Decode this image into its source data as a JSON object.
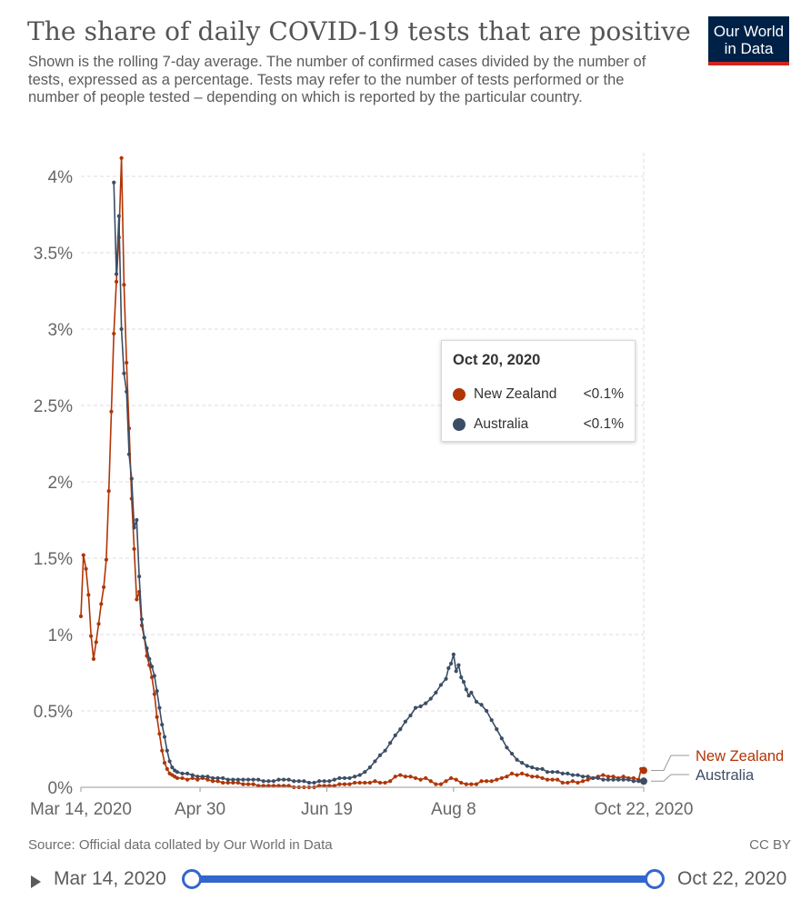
{
  "header": {
    "title": "The share of daily COVID-19 tests that are positive",
    "subtitle": "Shown is the rolling 7-day average. The number of confirmed cases divided by the number of tests, expressed as a percentage. Tests may refer to the number of tests performed or the number of people tested – depending on which is reported by the particular country.",
    "logo_line1": "Our World",
    "logo_line2": "in Data"
  },
  "colors": {
    "new_zealand": "#b13507",
    "australia": "#3c4e66",
    "slider": "#3366cc",
    "logo_bg": "#002147",
    "logo_accent": "#ce261e"
  },
  "tooltip": {
    "date": "Oct 20, 2020",
    "rows": [
      {
        "name": "New Zealand",
        "value": "<0.1%",
        "color": "#b13507"
      },
      {
        "name": "Australia",
        "value": "<0.1%",
        "color": "#3c4e66"
      }
    ]
  },
  "footer": {
    "source": "Source: Official data collated by Our World in Data",
    "license": "CC BY"
  },
  "timeline": {
    "start_label": "Mar 14, 2020",
    "end_label": "Oct 22, 2020"
  },
  "chart_data": {
    "type": "line",
    "title": "The share of daily COVID-19 tests that are positive",
    "xlabel": "",
    "ylabel": "",
    "x_unit": "days since Mar 14, 2020",
    "xlim": [
      0,
      222
    ],
    "ylim": [
      0,
      4.0
    ],
    "y_ticks": [
      0,
      0.5,
      1,
      1.5,
      2,
      2.5,
      3,
      3.5,
      4
    ],
    "y_tick_labels": [
      "0%",
      "0.5%",
      "1%",
      "1.5%",
      "2%",
      "2.5%",
      "3%",
      "3.5%",
      "4%"
    ],
    "x_ticks": [
      0,
      47,
      97,
      147,
      222
    ],
    "x_tick_labels": [
      "Mar 14, 2020",
      "Apr 30",
      "Jun 19",
      "Aug 8",
      "Oct 22, 2020"
    ],
    "grid": true,
    "legend": "end-labels-right",
    "series": [
      {
        "name": "New Zealand",
        "color": "#b13507",
        "points": [
          [
            0,
            1.12
          ],
          [
            1,
            1.52
          ],
          [
            2,
            1.43
          ],
          [
            3,
            1.26
          ],
          [
            4,
            0.99
          ],
          [
            5,
            0.84
          ],
          [
            6,
            0.95
          ],
          [
            7,
            1.07
          ],
          [
            8,
            1.2
          ],
          [
            9,
            1.31
          ],
          [
            10,
            1.49
          ],
          [
            11,
            1.94
          ],
          [
            12,
            2.46
          ],
          [
            13,
            2.97
          ],
          [
            14,
            3.31
          ],
          [
            15,
            3.6
          ],
          [
            16,
            4.12
          ],
          [
            17,
            3.29
          ],
          [
            18,
            2.78
          ],
          [
            19,
            2.35
          ],
          [
            20,
            1.89
          ],
          [
            21,
            1.56
          ],
          [
            22,
            1.23
          ],
          [
            23,
            1.28
          ],
          [
            24,
            1.06
          ],
          [
            25,
            0.98
          ],
          [
            26,
            0.86
          ],
          [
            27,
            0.8
          ],
          [
            28,
            0.72
          ],
          [
            29,
            0.61
          ],
          [
            30,
            0.46
          ],
          [
            31,
            0.35
          ],
          [
            32,
            0.24
          ],
          [
            33,
            0.16
          ],
          [
            34,
            0.12
          ],
          [
            35,
            0.09
          ],
          [
            36,
            0.08
          ],
          [
            37,
            0.07
          ],
          [
            38,
            0.06
          ],
          [
            40,
            0.06
          ],
          [
            42,
            0.05
          ],
          [
            44,
            0.06
          ],
          [
            46,
            0.05
          ],
          [
            48,
            0.06
          ],
          [
            50,
            0.05
          ],
          [
            52,
            0.04
          ],
          [
            54,
            0.04
          ],
          [
            56,
            0.03
          ],
          [
            58,
            0.03
          ],
          [
            60,
            0.03
          ],
          [
            62,
            0.03
          ],
          [
            64,
            0.02
          ],
          [
            66,
            0.02
          ],
          [
            68,
            0.02
          ],
          [
            70,
            0.01
          ],
          [
            72,
            0.01
          ],
          [
            74,
            0.01
          ],
          [
            76,
            0.01
          ],
          [
            78,
            0.01
          ],
          [
            80,
            0.01
          ],
          [
            82,
            0.01
          ],
          [
            84,
            0.0
          ],
          [
            86,
            0.0
          ],
          [
            88,
            0.0
          ],
          [
            90,
            0.0
          ],
          [
            92,
            0.0
          ],
          [
            94,
            0.01
          ],
          [
            96,
            0.01
          ],
          [
            98,
            0.01
          ],
          [
            100,
            0.01
          ],
          [
            102,
            0.02
          ],
          [
            104,
            0.02
          ],
          [
            106,
            0.02
          ],
          [
            108,
            0.03
          ],
          [
            110,
            0.03
          ],
          [
            112,
            0.03
          ],
          [
            114,
            0.03
          ],
          [
            116,
            0.04
          ],
          [
            118,
            0.03
          ],
          [
            120,
            0.03
          ],
          [
            122,
            0.04
          ],
          [
            124,
            0.07
          ],
          [
            126,
            0.08
          ],
          [
            128,
            0.07
          ],
          [
            130,
            0.07
          ],
          [
            132,
            0.06
          ],
          [
            134,
            0.05
          ],
          [
            136,
            0.06
          ],
          [
            138,
            0.04
          ],
          [
            140,
            0.02
          ],
          [
            142,
            0.02
          ],
          [
            144,
            0.04
          ],
          [
            146,
            0.06
          ],
          [
            148,
            0.05
          ],
          [
            150,
            0.03
          ],
          [
            152,
            0.02
          ],
          [
            154,
            0.02
          ],
          [
            156,
            0.02
          ],
          [
            158,
            0.04
          ],
          [
            160,
            0.04
          ],
          [
            162,
            0.04
          ],
          [
            164,
            0.05
          ],
          [
            166,
            0.06
          ],
          [
            168,
            0.07
          ],
          [
            170,
            0.09
          ],
          [
            172,
            0.08
          ],
          [
            174,
            0.09
          ],
          [
            176,
            0.08
          ],
          [
            178,
            0.07
          ],
          [
            180,
            0.07
          ],
          [
            182,
            0.06
          ],
          [
            184,
            0.05
          ],
          [
            186,
            0.05
          ],
          [
            188,
            0.05
          ],
          [
            190,
            0.03
          ],
          [
            192,
            0.03
          ],
          [
            194,
            0.04
          ],
          [
            196,
            0.03
          ],
          [
            198,
            0.04
          ],
          [
            200,
            0.05
          ],
          [
            202,
            0.06
          ],
          [
            204,
            0.07
          ],
          [
            206,
            0.08
          ],
          [
            208,
            0.07
          ],
          [
            210,
            0.07
          ],
          [
            212,
            0.06
          ],
          [
            214,
            0.07
          ],
          [
            216,
            0.06
          ],
          [
            218,
            0.06
          ],
          [
            220,
            0.05
          ],
          [
            221,
            0.12
          ],
          [
            222,
            0.11
          ]
        ]
      },
      {
        "name": "Australia",
        "color": "#3c4e66",
        "points": [
          [
            13,
            3.96
          ],
          [
            14,
            3.36
          ],
          [
            15,
            3.74
          ],
          [
            16,
            3.0
          ],
          [
            17,
            2.71
          ],
          [
            18,
            2.59
          ],
          [
            19,
            2.18
          ],
          [
            20,
            2.02
          ],
          [
            21,
            1.7
          ],
          [
            22,
            1.75
          ],
          [
            23,
            1.38
          ],
          [
            24,
            1.1
          ],
          [
            25,
            0.98
          ],
          [
            26,
            0.91
          ],
          [
            27,
            0.84
          ],
          [
            28,
            0.79
          ],
          [
            29,
            0.73
          ],
          [
            30,
            0.63
          ],
          [
            31,
            0.52
          ],
          [
            32,
            0.41
          ],
          [
            33,
            0.33
          ],
          [
            34,
            0.24
          ],
          [
            35,
            0.17
          ],
          [
            36,
            0.13
          ],
          [
            37,
            0.11
          ],
          [
            38,
            0.1
          ],
          [
            40,
            0.09
          ],
          [
            42,
            0.09
          ],
          [
            44,
            0.08
          ],
          [
            46,
            0.07
          ],
          [
            48,
            0.07
          ],
          [
            50,
            0.07
          ],
          [
            52,
            0.06
          ],
          [
            54,
            0.06
          ],
          [
            56,
            0.06
          ],
          [
            58,
            0.05
          ],
          [
            60,
            0.05
          ],
          [
            62,
            0.05
          ],
          [
            64,
            0.05
          ],
          [
            66,
            0.05
          ],
          [
            68,
            0.05
          ],
          [
            70,
            0.05
          ],
          [
            72,
            0.04
          ],
          [
            74,
            0.04
          ],
          [
            76,
            0.04
          ],
          [
            78,
            0.05
          ],
          [
            80,
            0.05
          ],
          [
            82,
            0.05
          ],
          [
            84,
            0.04
          ],
          [
            86,
            0.04
          ],
          [
            88,
            0.04
          ],
          [
            90,
            0.03
          ],
          [
            92,
            0.03
          ],
          [
            94,
            0.04
          ],
          [
            96,
            0.04
          ],
          [
            98,
            0.04
          ],
          [
            100,
            0.05
          ],
          [
            102,
            0.06
          ],
          [
            104,
            0.06
          ],
          [
            106,
            0.06
          ],
          [
            108,
            0.07
          ],
          [
            110,
            0.08
          ],
          [
            112,
            0.1
          ],
          [
            114,
            0.13
          ],
          [
            116,
            0.17
          ],
          [
            118,
            0.21
          ],
          [
            120,
            0.24
          ],
          [
            122,
            0.29
          ],
          [
            124,
            0.34
          ],
          [
            126,
            0.38
          ],
          [
            128,
            0.43
          ],
          [
            130,
            0.47
          ],
          [
            132,
            0.52
          ],
          [
            134,
            0.53
          ],
          [
            136,
            0.55
          ],
          [
            138,
            0.58
          ],
          [
            140,
            0.62
          ],
          [
            142,
            0.67
          ],
          [
            144,
            0.71
          ],
          [
            145,
            0.78
          ],
          [
            146,
            0.81
          ],
          [
            147,
            0.87
          ],
          [
            148,
            0.76
          ],
          [
            149,
            0.8
          ],
          [
            150,
            0.72
          ],
          [
            151,
            0.69
          ],
          [
            152,
            0.64
          ],
          [
            153,
            0.6
          ],
          [
            154,
            0.62
          ],
          [
            156,
            0.56
          ],
          [
            158,
            0.54
          ],
          [
            160,
            0.5
          ],
          [
            162,
            0.44
          ],
          [
            164,
            0.38
          ],
          [
            166,
            0.32
          ],
          [
            168,
            0.26
          ],
          [
            170,
            0.22
          ],
          [
            172,
            0.18
          ],
          [
            174,
            0.16
          ],
          [
            176,
            0.14
          ],
          [
            178,
            0.13
          ],
          [
            180,
            0.12
          ],
          [
            182,
            0.12
          ],
          [
            184,
            0.1
          ],
          [
            186,
            0.1
          ],
          [
            188,
            0.1
          ],
          [
            190,
            0.09
          ],
          [
            192,
            0.09
          ],
          [
            194,
            0.08
          ],
          [
            196,
            0.08
          ],
          [
            198,
            0.07
          ],
          [
            200,
            0.07
          ],
          [
            202,
            0.06
          ],
          [
            204,
            0.06
          ],
          [
            206,
            0.05
          ],
          [
            208,
            0.05
          ],
          [
            210,
            0.05
          ],
          [
            212,
            0.05
          ],
          [
            214,
            0.05
          ],
          [
            216,
            0.05
          ],
          [
            218,
            0.04
          ],
          [
            220,
            0.04
          ],
          [
            222,
            0.04
          ]
        ]
      }
    ]
  }
}
